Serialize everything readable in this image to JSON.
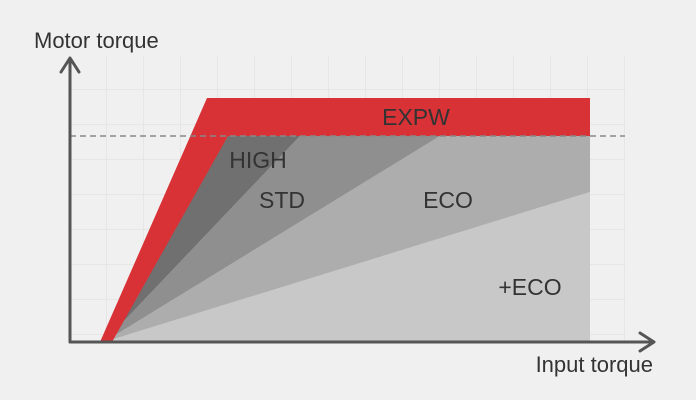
{
  "axes": {
    "y_label": "Motor torque",
    "x_label": "Input torque"
  },
  "regions": [
    {
      "label": "EXPW"
    },
    {
      "label": "HIGH"
    },
    {
      "label": "STD"
    },
    {
      "label": "ECO"
    },
    {
      "label": "+ECO"
    }
  ]
}
